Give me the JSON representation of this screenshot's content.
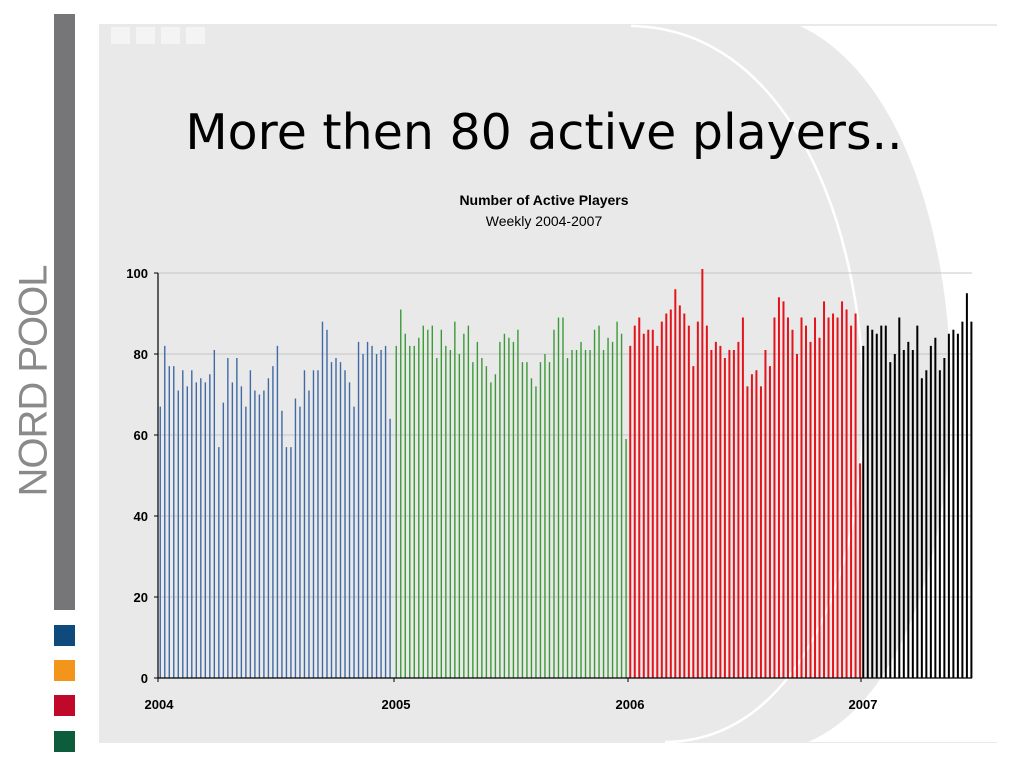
{
  "slide": {
    "title": "More then 80 active players..",
    "logo_text": "NORD POOL"
  },
  "colors": {
    "left_bar": "#767679",
    "swatches": [
      "#0f4a7c",
      "#f3951b",
      "#c0092a",
      "#0d5c3c"
    ],
    "series": [
      "#3f6aa4",
      "#3b9a36",
      "#e3141b",
      "#000000"
    ]
  },
  "chart_data": {
    "type": "bar",
    "title": "Number of Active Players",
    "subtitle": "Weekly 2004-2007",
    "xlabel": "",
    "ylabel": "",
    "ylim": [
      0,
      100
    ],
    "yticks": [
      "0",
      "20",
      "40",
      "60",
      "80",
      "100"
    ],
    "xticks": [
      "2004",
      "2005",
      "2006",
      "2007"
    ],
    "grid": true,
    "series": [
      {
        "year": "2004",
        "color": "#3f6aa4",
        "values": [
          67,
          82,
          77,
          77,
          71,
          76,
          72,
          76,
          73,
          74,
          73,
          75,
          81,
          57,
          68,
          79,
          73,
          79,
          72,
          67,
          76,
          71,
          70,
          71,
          74,
          77,
          82,
          66,
          57,
          57,
          69,
          67,
          76,
          71,
          76,
          76,
          88,
          86,
          78,
          79,
          78,
          76,
          73,
          67,
          83,
          80,
          83,
          82,
          80,
          81,
          82,
          64
        ]
      },
      {
        "year": "2005",
        "color": "#3b9a36",
        "values": [
          82,
          91,
          85,
          82,
          82,
          84,
          87,
          86,
          87,
          79,
          86,
          82,
          81,
          88,
          80,
          85,
          87,
          78,
          83,
          79,
          77,
          73,
          75,
          83,
          85,
          84,
          83,
          86,
          78,
          78,
          74,
          72,
          78,
          80,
          78,
          86,
          89,
          89,
          79,
          81,
          81,
          83,
          81,
          81,
          86,
          87,
          81,
          84,
          83,
          88,
          85,
          59
        ]
      },
      {
        "year": "2006",
        "color": "#e3141b",
        "values": [
          82,
          87,
          89,
          85,
          86,
          86,
          82,
          88,
          90,
          91,
          96,
          92,
          90,
          87,
          77,
          88,
          101,
          87,
          81,
          83,
          82,
          79,
          81,
          81,
          83,
          89,
          72,
          75,
          76,
          72,
          81,
          77,
          89,
          94,
          93,
          89,
          86,
          80,
          89,
          87,
          83,
          89,
          84,
          93,
          89,
          90,
          89,
          93,
          91,
          87,
          90,
          53
        ]
      },
      {
        "year": "2007",
        "color": "#000000",
        "values": [
          82,
          87,
          86,
          85,
          87,
          87,
          78,
          80,
          89,
          81,
          83,
          81,
          87,
          74,
          76,
          82,
          84,
          76,
          79,
          85,
          86,
          85,
          88,
          95,
          88
        ]
      }
    ]
  }
}
